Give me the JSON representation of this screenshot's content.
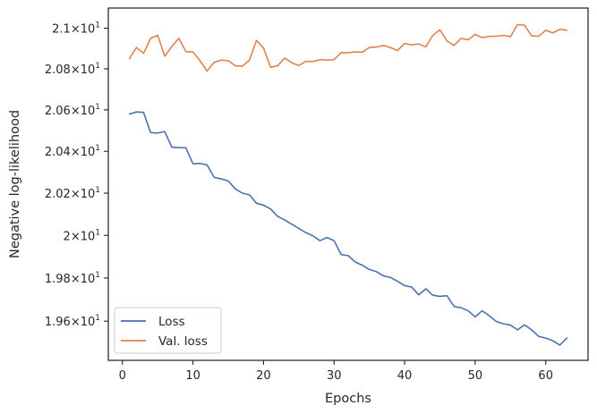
{
  "chart_data": {
    "type": "line",
    "title": "",
    "xlabel": "Epochs",
    "ylabel": "Negative log-likelihood",
    "yscale": "log",
    "xlim": [
      -2,
      66
    ],
    "ylim": [
      19.42,
      21.1
    ],
    "grid": false,
    "legend_position": "lower-left",
    "x_ticks": [
      {
        "value": 0,
        "label": "0"
      },
      {
        "value": 10,
        "label": "10"
      },
      {
        "value": 20,
        "label": "20"
      },
      {
        "value": 30,
        "label": "30"
      },
      {
        "value": 40,
        "label": "40"
      },
      {
        "value": 50,
        "label": "50"
      },
      {
        "value": 60,
        "label": "60"
      }
    ],
    "y_ticks": [
      {
        "value": 19.6,
        "mantissa": "1.96",
        "base": "10",
        "exp": "1"
      },
      {
        "value": 19.8,
        "mantissa": "1.98",
        "base": "10",
        "exp": "1"
      },
      {
        "value": 20.0,
        "mantissa": "2",
        "base": "10",
        "exp": "1"
      },
      {
        "value": 20.2,
        "mantissa": "2.02",
        "base": "10",
        "exp": "1"
      },
      {
        "value": 20.4,
        "mantissa": "2.04",
        "base": "10",
        "exp": "1"
      },
      {
        "value": 20.6,
        "mantissa": "2.06",
        "base": "10",
        "exp": "1"
      },
      {
        "value": 20.8,
        "mantissa": "2.08",
        "base": "10",
        "exp": "1"
      },
      {
        "value": 21.0,
        "mantissa": "2.1",
        "base": "10",
        "exp": "1"
      }
    ],
    "x": [
      1,
      2,
      3,
      4,
      5,
      6,
      7,
      8,
      9,
      10,
      11,
      12,
      13,
      14,
      15,
      16,
      17,
      18,
      19,
      20,
      21,
      22,
      23,
      24,
      25,
      26,
      27,
      28,
      29,
      30,
      31,
      32,
      33,
      34,
      35,
      36,
      37,
      38,
      39,
      40,
      41,
      42,
      43,
      44,
      45,
      46,
      47,
      48,
      49,
      50,
      51,
      52,
      53,
      54,
      55,
      56,
      57,
      58,
      59,
      60,
      61,
      62,
      63
    ],
    "series": [
      {
        "name": "Loss",
        "color": "#4c72b0",
        "values": [
          20.58,
          20.59,
          20.588,
          20.49,
          20.488,
          20.495,
          20.42,
          20.418,
          20.417,
          20.34,
          20.342,
          20.335,
          20.275,
          20.268,
          20.258,
          20.22,
          20.2,
          20.192,
          20.152,
          20.143,
          20.125,
          20.09,
          20.073,
          20.053,
          20.033,
          20.013,
          19.998,
          19.975,
          19.99,
          19.975,
          19.91,
          19.905,
          19.875,
          19.86,
          19.84,
          19.83,
          19.81,
          19.803,
          19.785,
          19.765,
          19.758,
          19.722,
          19.75,
          19.72,
          19.715,
          19.718,
          19.668,
          19.662,
          19.648,
          19.62,
          19.648,
          19.625,
          19.598,
          19.588,
          19.582,
          19.56,
          19.583,
          19.56,
          19.53,
          19.522,
          19.51,
          19.49,
          19.523
        ]
      },
      {
        "name": "Val. loss",
        "color": "#dd8452",
        "values": [
          20.85,
          20.905,
          20.876,
          20.95,
          20.965,
          20.862,
          20.91,
          20.95,
          20.885,
          20.883,
          20.84,
          20.789,
          20.832,
          20.843,
          20.84,
          20.815,
          20.813,
          20.842,
          20.94,
          20.903,
          20.808,
          20.815,
          20.853,
          20.83,
          20.816,
          20.837,
          20.836,
          20.845,
          20.843,
          20.845,
          20.88,
          20.879,
          20.883,
          20.882,
          20.905,
          20.907,
          20.915,
          20.905,
          20.89,
          20.925,
          20.918,
          20.922,
          20.908,
          20.965,
          20.992,
          20.937,
          20.915,
          20.95,
          20.943,
          20.97,
          20.953,
          20.96,
          20.96,
          20.965,
          20.958,
          21.018,
          21.015,
          20.962,
          20.96,
          20.99,
          20.977,
          20.995,
          20.99
        ]
      }
    ]
  }
}
